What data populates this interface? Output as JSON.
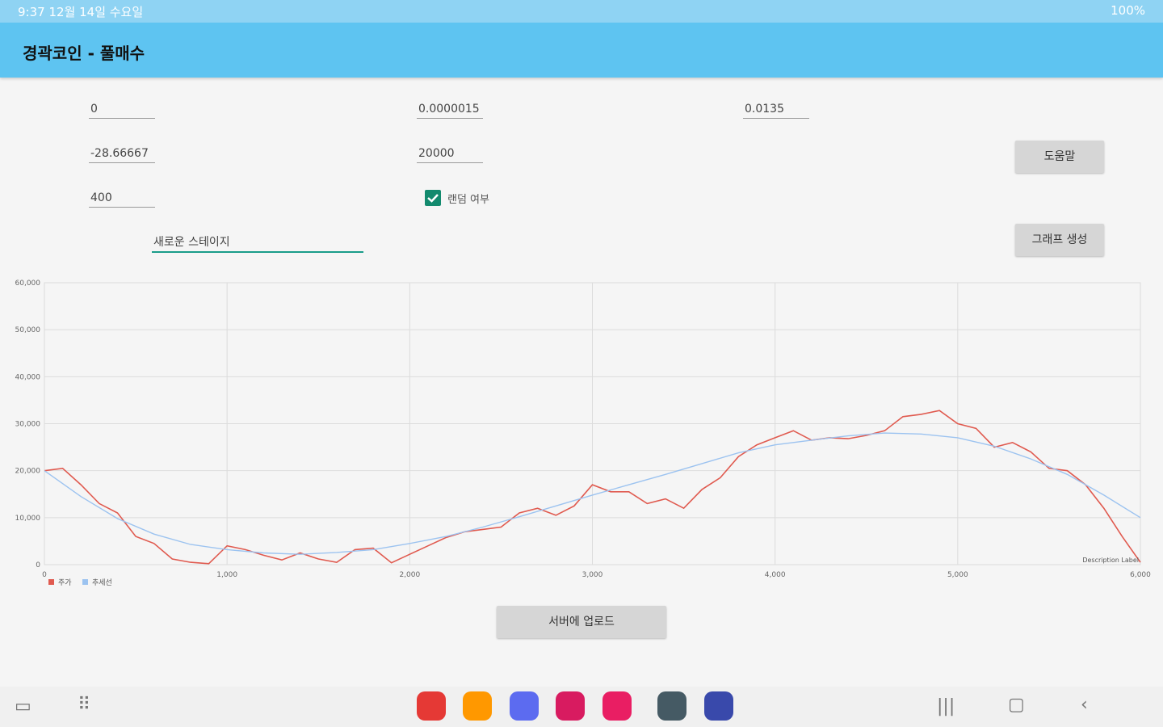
{
  "statusbar": {
    "left": "9:37  12월 14일 수요일",
    "right": "100%"
  },
  "appbar": {
    "title": "경곽코인 - 풀매수"
  },
  "inputs": {
    "r1c1": "0",
    "r1c2": "0.0000015",
    "r1c3": "0.0135",
    "r2c1": "-28.66667",
    "r2c2": "20000",
    "r3c1": "400",
    "stage": "새로운 스테이지"
  },
  "checkbox": {
    "label": "랜덤 여부",
    "checked": true
  },
  "buttons": {
    "help": "도움말",
    "graph": "그래프 생성",
    "upload": "서버에 업로드"
  },
  "chart_data": {
    "type": "line",
    "xlim": [
      0,
      6000
    ],
    "ylim": [
      0,
      60000
    ],
    "x_ticks": [
      "0",
      "1,000",
      "2,000",
      "3,000",
      "4,000",
      "5,000",
      "6,000"
    ],
    "y_ticks": [
      "0",
      "10,000",
      "20,000",
      "30,000",
      "40,000",
      "50,000",
      "60,000"
    ],
    "grid": true,
    "legend_position": "bottom-left",
    "description_label": "Description Label",
    "series": [
      {
        "name": "주가",
        "color": "#e05a4f",
        "x": [
          0,
          100,
          200,
          300,
          400,
          500,
          600,
          700,
          800,
          900,
          1000,
          1100,
          1200,
          1300,
          1400,
          1500,
          1600,
          1700,
          1800,
          1900,
          2000,
          2100,
          2200,
          2300,
          2400,
          2500,
          2600,
          2700,
          2800,
          2900,
          3000,
          3100,
          3200,
          3300,
          3400,
          3500,
          3600,
          3700,
          3800,
          3900,
          4000,
          4100,
          4200,
          4300,
          4400,
          4500,
          4600,
          4700,
          4800,
          4900,
          5000,
          5100,
          5200,
          5300,
          5400,
          5500,
          5600,
          5700,
          5800,
          5900,
          6000
        ],
        "y": [
          20000,
          20500,
          17000,
          13000,
          11000,
          6000,
          4500,
          1200,
          500,
          200,
          4000,
          3200,
          2000,
          1000,
          2500,
          1200,
          500,
          3200,
          3500,
          400,
          2200,
          4000,
          5800,
          7000,
          7500,
          8000,
          11000,
          12000,
          10500,
          12500,
          17000,
          15500,
          15500,
          13000,
          14000,
          12000,
          16000,
          18500,
          23000,
          25500,
          27000,
          28500,
          26500,
          27000,
          26800,
          27500,
          28500,
          31500,
          32000,
          32800,
          30000,
          29000,
          25000,
          26000,
          24000,
          20500,
          20000,
          17000,
          12000,
          6000,
          500
        ]
      },
      {
        "name": "추세선",
        "color": "#9cc3f0",
        "x": [
          0,
          200,
          400,
          600,
          800,
          1000,
          1200,
          1400,
          1600,
          1800,
          2000,
          2200,
          2400,
          2600,
          2800,
          3000,
          3200,
          3400,
          3600,
          3800,
          4000,
          4200,
          4400,
          4600,
          4800,
          5000,
          5200,
          5400,
          5600,
          5800,
          6000
        ],
        "y": [
          20000,
          14500,
          9800,
          6500,
          4300,
          3200,
          2500,
          2200,
          2600,
          3200,
          4500,
          6000,
          8000,
          10200,
          12500,
          14800,
          17000,
          19200,
          21500,
          23800,
          25500,
          26500,
          27400,
          28000,
          27800,
          27000,
          25200,
          22500,
          19200,
          14800,
          10000
        ]
      }
    ]
  },
  "nav_apps": [
    {
      "name": "notes-app-icon",
      "color": "#e53935"
    },
    {
      "name": "folder-app-icon",
      "color": "#ff9800"
    },
    {
      "name": "internet-app-icon",
      "color": "#5c6bf0"
    },
    {
      "name": "flower-app-icon",
      "color": "#d81b60"
    },
    {
      "name": "camera-app-icon",
      "color": "#e91e63"
    },
    {
      "name": "settings-app-icon",
      "color": "#455a64"
    },
    {
      "name": "browser-app-icon",
      "color": "#3949ab"
    }
  ]
}
